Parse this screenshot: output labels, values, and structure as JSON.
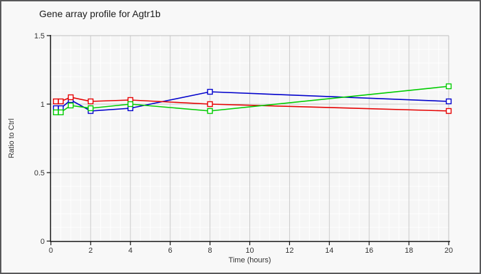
{
  "chart_data": {
    "type": "line",
    "title": "Gene array profile for Agtr1b",
    "xlabel": "Time (hours)",
    "ylabel": "Ratio to Ctrl",
    "xlim": [
      0,
      20
    ],
    "ylim": [
      0,
      1.5
    ],
    "x_ticks": {
      "values": [
        0,
        2,
        4,
        6,
        8,
        10,
        12,
        14,
        16,
        18,
        20
      ],
      "labels": [
        "0",
        "2",
        "4",
        "6",
        "8",
        "10",
        "12",
        "14",
        "16",
        "18",
        "20"
      ]
    },
    "y_ticks": {
      "values": [
        0,
        0.5,
        1,
        1.5
      ],
      "labels": [
        "0",
        "0.5",
        "1",
        "1.5"
      ]
    },
    "minor_grid": {
      "x_step": 0.5,
      "y_step": 0.1
    },
    "grid": "on",
    "legend": "none",
    "marker": "open-square",
    "x": [
      0.25,
      0.5,
      1,
      2,
      4,
      8,
      20
    ],
    "series": [
      {
        "name": "blue-series",
        "color": "#0000cc",
        "values": [
          0.97,
          0.97,
          1.03,
          0.95,
          0.97,
          1.09,
          1.02
        ]
      },
      {
        "name": "red-series",
        "color": "#e60000",
        "values": [
          1.02,
          1.02,
          1.05,
          1.02,
          1.03,
          1.0,
          0.95
        ]
      },
      {
        "name": "green-series",
        "color": "#00cc00",
        "values": [
          0.94,
          0.94,
          0.99,
          0.97,
          1.0,
          0.95,
          1.13
        ]
      }
    ]
  },
  "colors": {
    "canvas_bg": "#f8f8f8",
    "plot_bg": "#f6f6f6",
    "minor_grid": "#ffffff",
    "major_grid": "#c9c9c9",
    "frame": "#bfbfbf",
    "axis": "#111111",
    "tick_text": "#333333",
    "title_text": "#1a1a1a"
  }
}
